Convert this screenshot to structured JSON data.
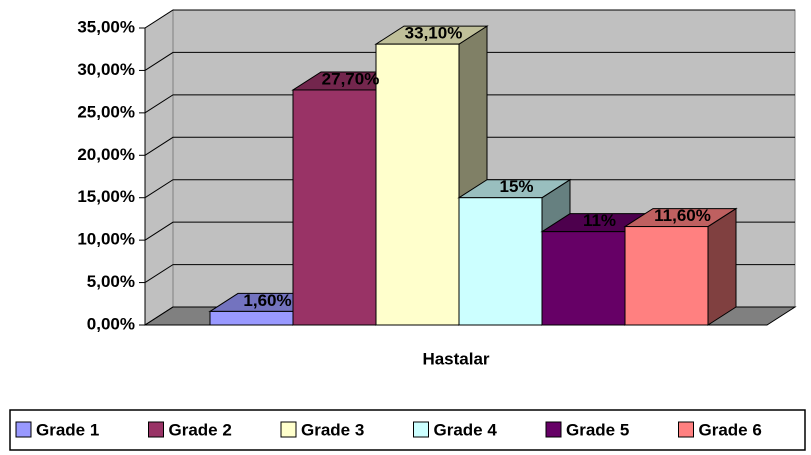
{
  "chart_data": {
    "type": "bar",
    "categories": [
      "Hastalar"
    ],
    "series": [
      {
        "name": "Grade 1",
        "color": "#9999ff",
        "values": [
          1.6
        ],
        "value_labels": [
          "1,60%"
        ]
      },
      {
        "name": "Grade 2",
        "color": "#993366",
        "values": [
          27.7
        ],
        "value_labels": [
          "27,70%"
        ]
      },
      {
        "name": "Grade 3",
        "color": "#ffffcc",
        "values": [
          33.1
        ],
        "value_labels": [
          "33,10%"
        ]
      },
      {
        "name": "Grade 4",
        "color": "#ccffff",
        "values": [
          15
        ],
        "value_labels": [
          "15%"
        ]
      },
      {
        "name": "Grade 5",
        "color": "#660066",
        "values": [
          11
        ],
        "value_labels": [
          "11%"
        ]
      },
      {
        "name": "Grade 6",
        "color": "#ff8080",
        "values": [
          11.6
        ],
        "value_labels": [
          "11,60%"
        ]
      }
    ],
    "ylim": [
      0,
      35
    ],
    "yticks": [
      {
        "value": 0,
        "label": "0,00%"
      },
      {
        "value": 5,
        "label": "5,00%"
      },
      {
        "value": 10,
        "label": "10,00%"
      },
      {
        "value": 15,
        "label": "15,00%"
      },
      {
        "value": 20,
        "label": "20,00%"
      },
      {
        "value": 25,
        "label": "25,00%"
      },
      {
        "value": 30,
        "label": "30,00%"
      },
      {
        "value": 35,
        "label": "35,00%"
      }
    ],
    "grid": true,
    "legend": "bottom"
  }
}
